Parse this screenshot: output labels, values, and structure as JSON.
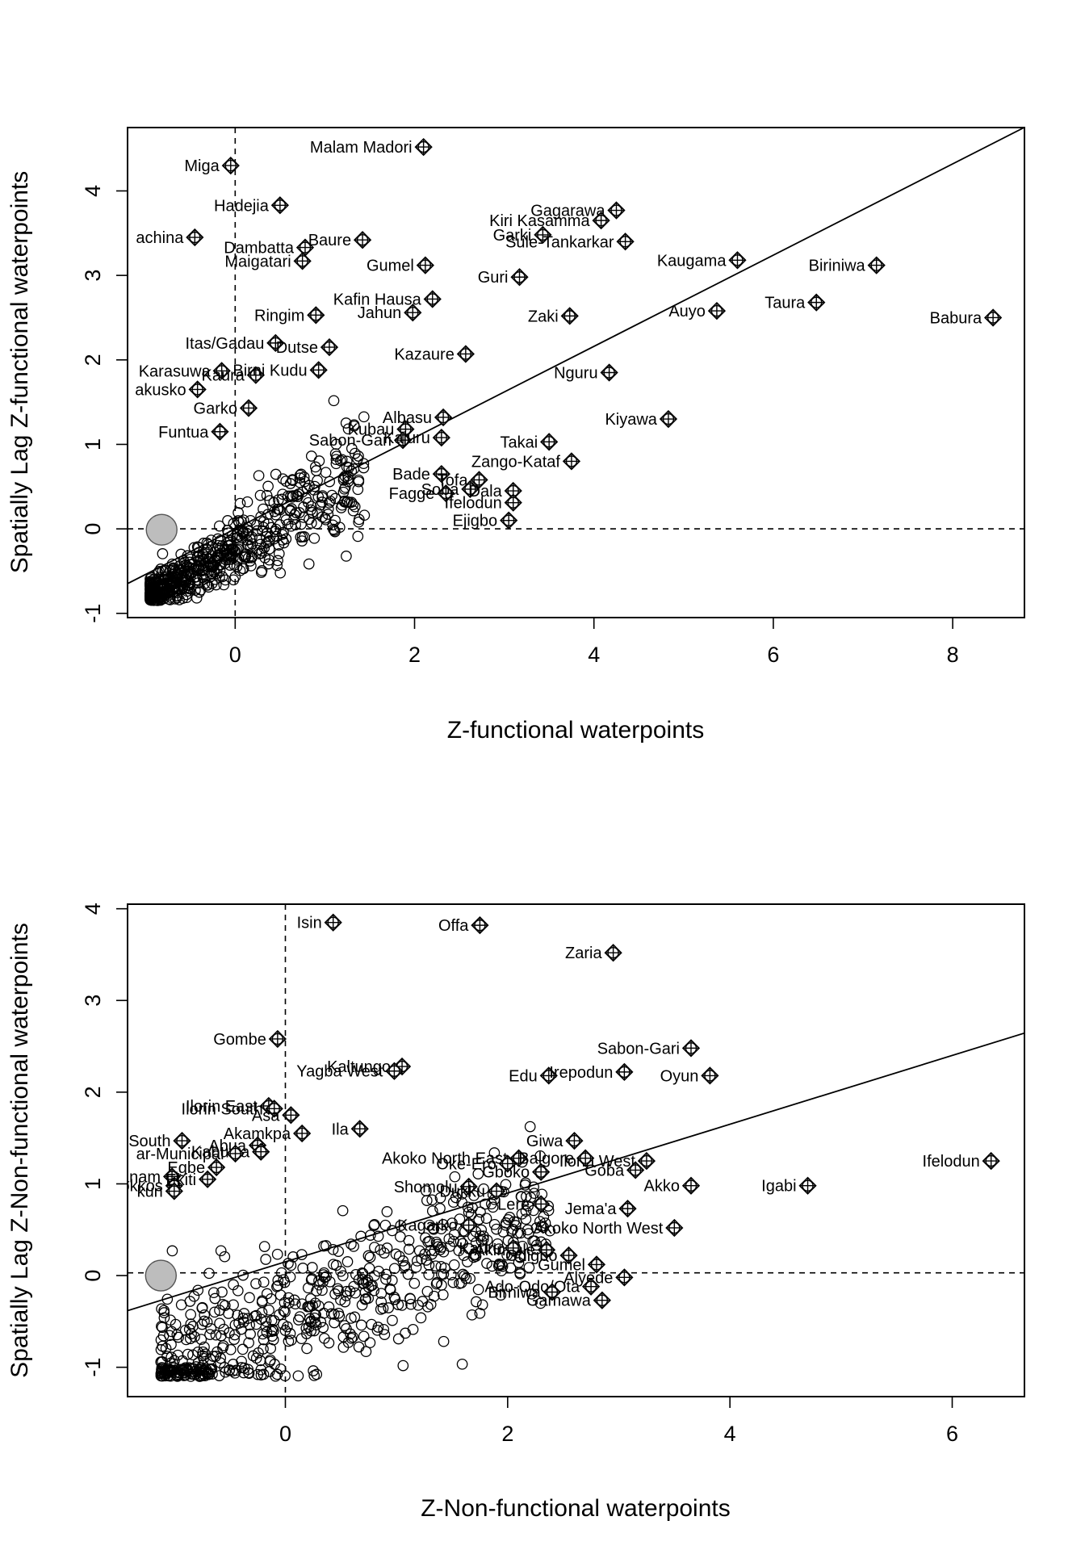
{
  "chart_data": [
    {
      "type": "scatter",
      "xlabel": "Z-functional waterpoints",
      "ylabel": "Spatially Lag Z-functional waterpoints",
      "xlim": [
        -1.2,
        8.8
      ],
      "ylim": [
        -1.05,
        4.75
      ],
      "x_ticks": [
        0,
        2,
        4,
        6,
        8
      ],
      "y_ticks": [
        -1,
        0,
        1,
        2,
        3,
        4
      ],
      "x_tick_labels": [
        "0",
        "2",
        "4",
        "6",
        "8"
      ],
      "y_tick_labels": [
        "-1",
        "0",
        "1",
        "2",
        "3",
        "4"
      ],
      "vline": 0,
      "hline": 0,
      "regression": {
        "intercept": 0.0,
        "slope": 0.54
      },
      "mean_point": [
        -0.82,
        -0.01
      ],
      "influential": [
        {
          "label": "Malam Madori",
          "x": 2.1,
          "y": 4.52
        },
        {
          "label": "Miga",
          "x": -0.05,
          "y": 4.3
        },
        {
          "label": "Hadejia",
          "x": 0.5,
          "y": 3.83
        },
        {
          "label": "achina",
          "x": -0.45,
          "y": 3.45
        },
        {
          "label": "Dambatta",
          "x": 0.78,
          "y": 3.33
        },
        {
          "label": "Maigatari",
          "x": 0.75,
          "y": 3.17
        },
        {
          "label": "Baure",
          "x": 1.42,
          "y": 3.42
        },
        {
          "label": "Gumel",
          "x": 2.12,
          "y": 3.12
        },
        {
          "label": "Gagarawa",
          "x": 4.25,
          "y": 3.77
        },
        {
          "label": "Kiri Kasamma",
          "x": 4.08,
          "y": 3.65
        },
        {
          "label": "Garki",
          "x": 3.43,
          "y": 3.48
        },
        {
          "label": "Sule-Tankarkar",
          "x": 4.35,
          "y": 3.4
        },
        {
          "label": "Guri",
          "x": 3.17,
          "y": 2.98
        },
        {
          "label": "Kaugama",
          "x": 5.6,
          "y": 3.18
        },
        {
          "label": "Biriniwa",
          "x": 7.15,
          "y": 3.12
        },
        {
          "label": "Kafin Hausa",
          "x": 2.2,
          "y": 2.72
        },
        {
          "label": "Jahun",
          "x": 1.98,
          "y": 2.56
        },
        {
          "label": "Ringim",
          "x": 0.9,
          "y": 2.53
        },
        {
          "label": "Zaki",
          "x": 3.73,
          "y": 2.52
        },
        {
          "label": "Auyo",
          "x": 5.37,
          "y": 2.58
        },
        {
          "label": "Taura",
          "x": 6.48,
          "y": 2.68
        },
        {
          "label": "Babura",
          "x": 8.45,
          "y": 2.5
        },
        {
          "label": "Itas/Gadau",
          "x": 0.45,
          "y": 2.2
        },
        {
          "label": "Dutse",
          "x": 1.05,
          "y": 2.15
        },
        {
          "label": "Kazaure",
          "x": 2.57,
          "y": 2.07
        },
        {
          "label": "Karasuwa",
          "x": -0.15,
          "y": 1.87
        },
        {
          "label": "Kaura",
          "x": 0.23,
          "y": 1.82
        },
        {
          "label": "Birni Kudu",
          "x": 0.93,
          "y": 1.88
        },
        {
          "label": "Nguru",
          "x": 4.17,
          "y": 1.85
        },
        {
          "label": "akusko",
          "x": -0.42,
          "y": 1.65
        },
        {
          "label": "Garko",
          "x": 0.15,
          "y": 1.43
        },
        {
          "label": "Funtua",
          "x": -0.17,
          "y": 1.15
        },
        {
          "label": "Albasu",
          "x": 2.32,
          "y": 1.32
        },
        {
          "label": "Kubau",
          "x": 1.9,
          "y": 1.18
        },
        {
          "label": "Sabon-Gari",
          "x": 1.87,
          "y": 1.05
        },
        {
          "label": "Kajuru",
          "x": 2.3,
          "y": 1.08
        },
        {
          "label": "Kiyawa",
          "x": 4.83,
          "y": 1.3
        },
        {
          "label": "Takai",
          "x": 3.5,
          "y": 1.03
        },
        {
          "label": "Zango-Kataf",
          "x": 3.75,
          "y": 0.8
        },
        {
          "label": "Bade",
          "x": 2.3,
          "y": 0.65
        },
        {
          "label": "Tofa",
          "x": 2.72,
          "y": 0.58
        },
        {
          "label": "Fagge",
          "x": 2.35,
          "y": 0.42
        },
        {
          "label": "Soba",
          "x": 2.62,
          "y": 0.47
        },
        {
          "label": "Dala",
          "x": 3.1,
          "y": 0.45
        },
        {
          "label": "Ifelodun",
          "x": 3.1,
          "y": 0.31
        },
        {
          "label": "Ejigbo",
          "x": 3.05,
          "y": 0.1
        }
      ]
    },
    {
      "type": "scatter",
      "xlabel": "Z-Non-functional waterpoints",
      "ylabel": "Spatially Lag Z-Non-functional waterpoints",
      "xlim": [
        -1.42,
        6.65
      ],
      "ylim": [
        -1.32,
        4.05
      ],
      "x_ticks": [
        0,
        2,
        4,
        6
      ],
      "y_ticks": [
        -1,
        0,
        1,
        2,
        3,
        4
      ],
      "x_tick_labels": [
        "0",
        "2",
        "4",
        "6"
      ],
      "y_tick_labels": [
        "-1",
        "0",
        "1",
        "2",
        "3",
        "4"
      ],
      "vline": 0,
      "hline": 0.03,
      "regression": {
        "intercept": 0.15,
        "slope": 0.375
      },
      "mean_point": [
        -1.12,
        0.0
      ],
      "influential": [
        {
          "label": "Isin",
          "x": 0.43,
          "y": 3.85
        },
        {
          "label": "Offa",
          "x": 1.75,
          "y": 3.82
        },
        {
          "label": "Zaria",
          "x": 2.95,
          "y": 3.52
        },
        {
          "label": "Gombe",
          "x": -0.07,
          "y": 2.58
        },
        {
          "label": "Kaltungo",
          "x": 1.05,
          "y": 2.28
        },
        {
          "label": "Yagba West",
          "x": 0.98,
          "y": 2.23
        },
        {
          "label": "Sabon-Gari",
          "x": 3.65,
          "y": 2.48
        },
        {
          "label": "Edu",
          "x": 2.37,
          "y": 2.18
        },
        {
          "label": "Irepodun",
          "x": 3.05,
          "y": 2.22
        },
        {
          "label": "Oyun",
          "x": 3.82,
          "y": 2.18
        },
        {
          "label": "Ilorin East",
          "x": -0.15,
          "y": 1.85
        },
        {
          "label": "Ilorin South",
          "x": -0.1,
          "y": 1.82
        },
        {
          "label": "Asa",
          "x": 0.05,
          "y": 1.75
        },
        {
          "label": "Ila",
          "x": 0.67,
          "y": 1.6
        },
        {
          "label": "Akamkpa",
          "x": 0.15,
          "y": 1.55
        },
        {
          "label": "South",
          "x": -0.93,
          "y": 1.47
        },
        {
          "label": "Giwa",
          "x": 2.6,
          "y": 1.47
        },
        {
          "label": "Abua",
          "x": -0.25,
          "y": 1.42
        },
        {
          "label": "Kabuwa",
          "x": -0.22,
          "y": 1.35
        },
        {
          "label": "ar-Municipal",
          "x": -0.45,
          "y": 1.33
        },
        {
          "label": "Akoko North East",
          "x": 2.1,
          "y": 1.28
        },
        {
          "label": "Ifelodun",
          "x": 6.35,
          "y": 1.25
        },
        {
          "label": "Ilorin West",
          "x": 3.25,
          "y": 1.25
        },
        {
          "label": "Balgore",
          "x": 2.7,
          "y": 1.28
        },
        {
          "label": "Gboko",
          "x": 2.3,
          "y": 1.13
        },
        {
          "label": "Oke-Ero",
          "x": 2.0,
          "y": 1.22
        },
        {
          "label": "Egbe",
          "x": -0.62,
          "y": 1.18
        },
        {
          "label": "Goba",
          "x": 3.15,
          "y": 1.15
        },
        {
          "label": "Kanam",
          "x": -1.02,
          "y": 1.08
        },
        {
          "label": "Akko",
          "x": 3.65,
          "y": 0.98
        },
        {
          "label": "Igabi",
          "x": 4.7,
          "y": 0.98
        },
        {
          "label": "Bokkos",
          "x": -1.0,
          "y": 0.98
        },
        {
          "label": "Ekiti",
          "x": -0.7,
          "y": 1.05
        },
        {
          "label": "Shomolu",
          "x": 1.65,
          "y": 0.97
        },
        {
          "label": "Dukku",
          "x": 1.9,
          "y": 0.92
        },
        {
          "label": "kun",
          "x": -1.0,
          "y": 0.92
        },
        {
          "label": "Jema'a",
          "x": 3.08,
          "y": 0.73
        },
        {
          "label": "Lere",
          "x": 2.3,
          "y": 0.78
        },
        {
          "label": "Akoko North West",
          "x": 3.5,
          "y": 0.52
        },
        {
          "label": "Kagarko",
          "x": 1.65,
          "y": 0.55
        },
        {
          "label": "Akinyele",
          "x": 2.35,
          "y": 0.28
        },
        {
          "label": "Kauru",
          "x": 2.05,
          "y": 0.3
        },
        {
          "label": "Odigbo",
          "x": 2.55,
          "y": 0.22
        },
        {
          "label": "Gumel",
          "x": 2.8,
          "y": 0.12
        },
        {
          "label": "Alyede",
          "x": 3.05,
          "y": -0.02
        },
        {
          "label": "Ado-Odo/Ota",
          "x": 2.75,
          "y": -0.12
        },
        {
          "label": "Birniwa",
          "x": 2.4,
          "y": -0.18
        },
        {
          "label": "Gamawa",
          "x": 2.85,
          "y": -0.27
        }
      ]
    }
  ]
}
